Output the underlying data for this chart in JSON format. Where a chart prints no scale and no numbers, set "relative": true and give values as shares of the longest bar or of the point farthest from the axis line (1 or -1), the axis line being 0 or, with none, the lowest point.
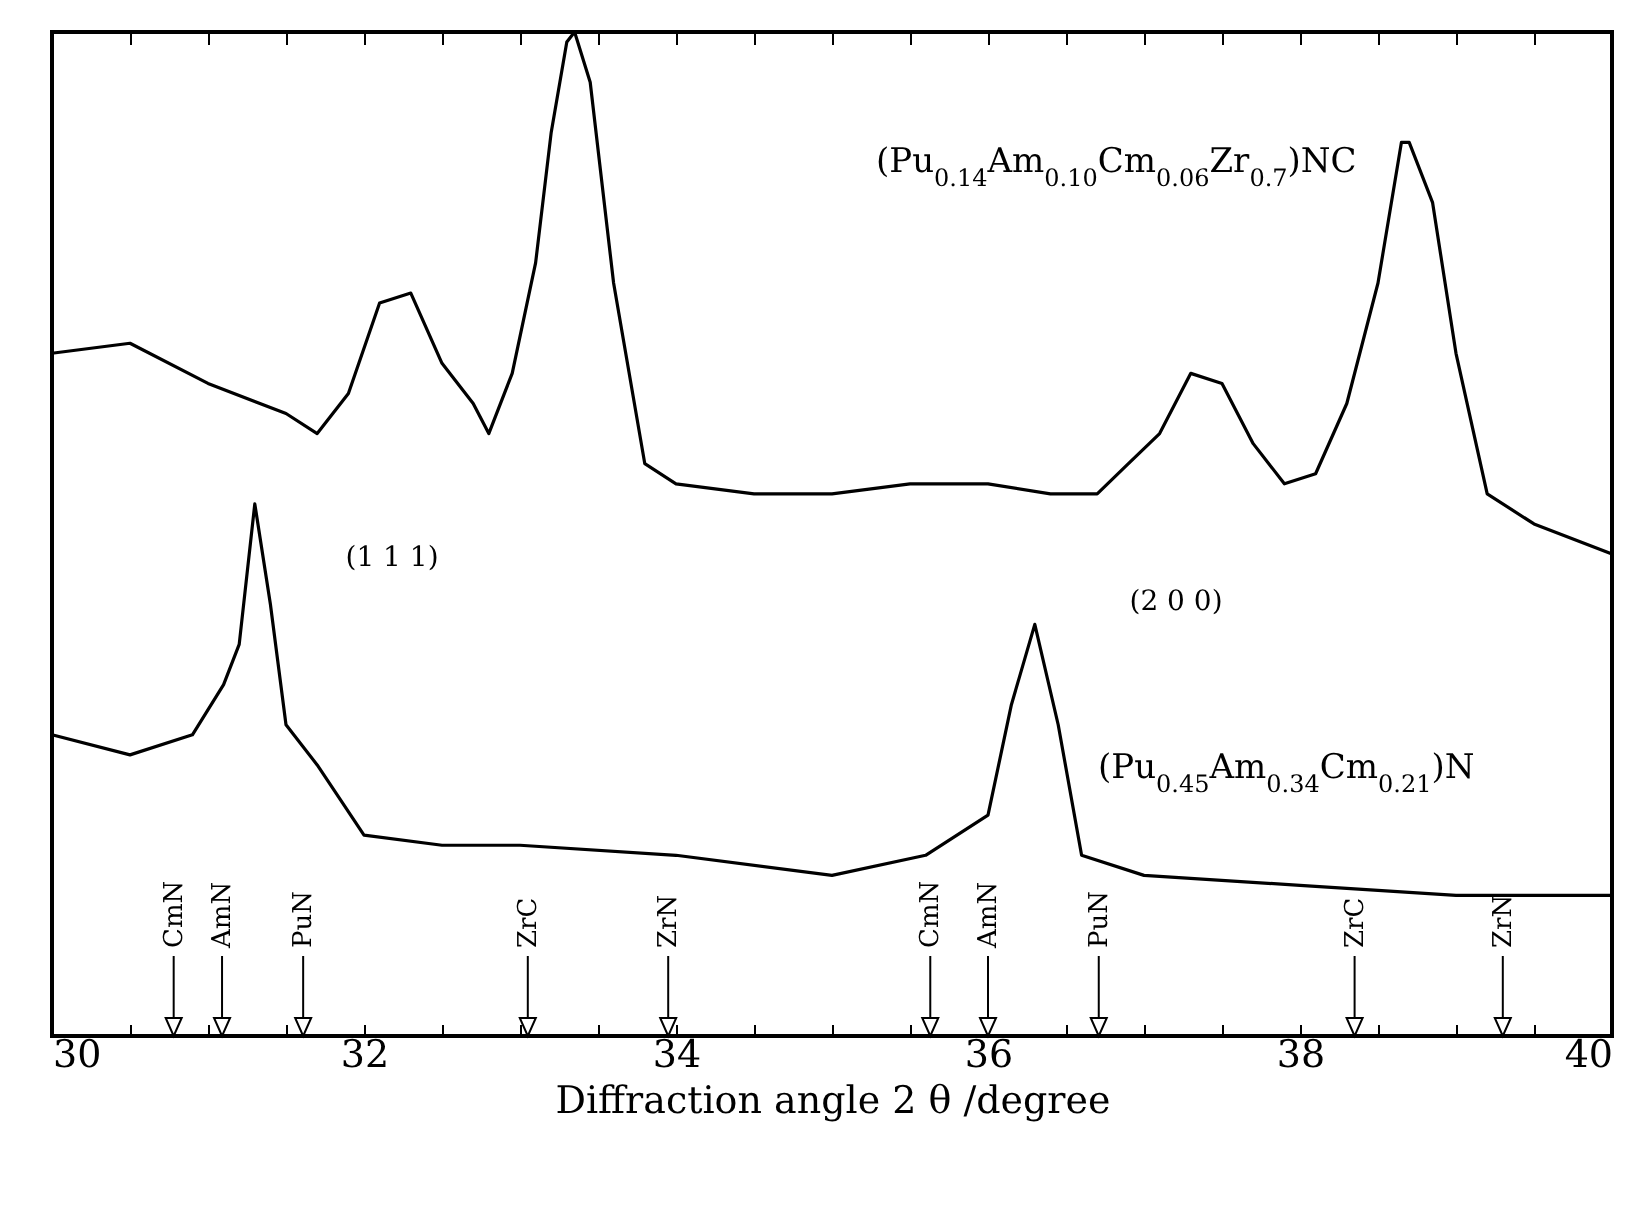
{
  "chart_data": {
    "type": "line",
    "relative": true,
    "xlabel": "Diffraction angle 2 θ /degree",
    "xlim": [
      30,
      40
    ],
    "xticks": [
      30,
      {
        "value": 30.5,
        "label": null
      },
      {
        "value": 31,
        "label": null
      },
      {
        "value": 31.5,
        "label": null
      },
      32,
      {
        "value": 32.5,
        "label": null
      },
      {
        "value": 33,
        "label": null
      },
      {
        "value": 33.5,
        "label": null
      },
      34,
      {
        "value": 34.5,
        "label": null
      },
      {
        "value": 35,
        "label": null
      },
      {
        "value": 35.5,
        "label": null
      },
      36,
      {
        "value": 36.5,
        "label": null
      },
      {
        "value": 37,
        "label": null
      },
      {
        "value": 37.5,
        "label": null
      },
      38,
      {
        "value": 38.5,
        "label": null
      },
      {
        "value": 39,
        "label": null
      },
      {
        "value": 39.5,
        "label": null
      },
      40
    ],
    "tick_labels": "x",
    "legend": false,
    "grid": false,
    "series": [
      {
        "name": "(Pu$_{0.14}$Am$_{0.10}$Cm$_{0.06}$Zr$_{0.7}$)NC",
        "color": "#000000",
        "x": [
          30,
          30.5,
          31,
          31.5,
          31.7,
          31.9,
          32.1,
          32.3,
          32.5,
          32.7,
          32.8,
          32.95,
          33.1,
          33.2,
          33.3,
          33.35,
          33.45,
          33.6,
          33.8,
          34,
          34.5,
          35,
          35.5,
          36,
          36.4,
          36.7,
          36.9,
          37.1,
          37.3,
          37.5,
          37.7,
          37.9,
          38.1,
          38.3,
          38.5,
          38.65,
          38.7,
          38.85,
          39,
          39.2,
          39.5,
          40
        ],
        "values": [
          0.68,
          0.69,
          0.65,
          0.62,
          0.6,
          0.64,
          0.73,
          0.74,
          0.67,
          0.63,
          0.6,
          0.66,
          0.77,
          0.9,
          0.99,
          1.0,
          0.95,
          0.75,
          0.57,
          0.55,
          0.54,
          0.54,
          0.55,
          0.55,
          0.54,
          0.54,
          0.57,
          0.6,
          0.66,
          0.65,
          0.59,
          0.55,
          0.56,
          0.63,
          0.75,
          0.89,
          0.89,
          0.83,
          0.68,
          0.54,
          0.51,
          0.48
        ]
      },
      {
        "name": "(Pu$_{0.45}$Am$_{0.34}$Cm$_{0.21}$)N",
        "color": "#000000",
        "x": [
          30,
          30.5,
          30.9,
          31.1,
          31.2,
          31.3,
          31.4,
          31.5,
          31.7,
          32,
          32.5,
          33,
          34,
          35,
          35.6,
          36,
          36.15,
          36.3,
          36.45,
          36.6,
          37,
          38,
          39,
          40
        ],
        "values": [
          0.3,
          0.28,
          0.3,
          0.35,
          0.39,
          0.53,
          0.43,
          0.31,
          0.27,
          0.2,
          0.19,
          0.19,
          0.18,
          0.16,
          0.18,
          0.22,
          0.33,
          0.41,
          0.31,
          0.18,
          0.16,
          0.15,
          0.14,
          0.14
        ]
      }
    ],
    "annotations": [
      "(1 1 1)",
      "(2 0 0)"
    ],
    "ref_lines": [
      {
        "axis": "x",
        "value": 30.78,
        "label": "CmN"
      },
      {
        "axis": "x",
        "value": 31.09,
        "label": "AmN"
      },
      {
        "axis": "x",
        "value": 31.61,
        "label": "PuN"
      },
      {
        "axis": "x",
        "value": 33.05,
        "label": "ZrC"
      },
      {
        "axis": "x",
        "value": 33.95,
        "label": "ZrN"
      },
      {
        "axis": "x",
        "value": 35.63,
        "label": "CmN"
      },
      {
        "axis": "x",
        "value": 36.0,
        "label": "AmN"
      },
      {
        "axis": "x",
        "value": 36.71,
        "label": "PuN"
      },
      {
        "axis": "x",
        "value": 38.35,
        "label": "ZrC"
      },
      {
        "axis": "x",
        "value": 39.3,
        "label": "ZrN"
      }
    ]
  }
}
